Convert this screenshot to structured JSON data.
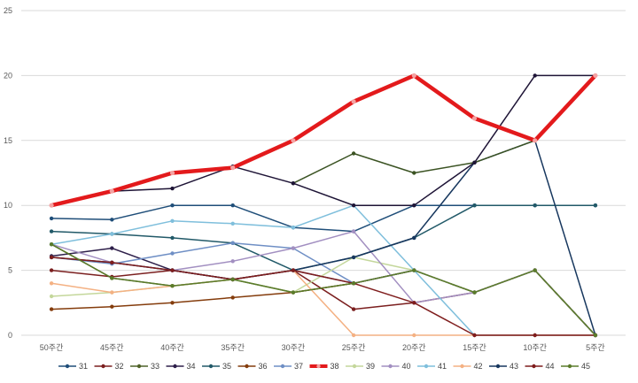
{
  "chart_data": {
    "type": "line",
    "categories": [
      "50주간",
      "45주간",
      "40주간",
      "35주간",
      "30주간",
      "25주간",
      "20주간",
      "15주간",
      "10주간",
      "5주간"
    ],
    "ylim": [
      0,
      25
    ],
    "yticks": [
      0,
      5,
      10,
      15,
      20,
      25
    ],
    "grid": true,
    "legend_position": "bottom",
    "series": [
      {
        "name": "31",
        "color": "#1f4e79",
        "values": [
          9,
          8.9,
          10,
          10,
          8.3,
          8,
          10,
          10,
          10,
          10
        ]
      },
      {
        "name": "32",
        "color": "#7b1f1f",
        "values": [
          5,
          4.5,
          5,
          4.3,
          5,
          2,
          2.5,
          3.3,
          5,
          0
        ]
      },
      {
        "name": "33",
        "color": "#4f6228",
        "values": [
          7,
          4.4,
          3.8,
          4.3,
          3.3,
          4,
          5,
          3.3,
          5,
          0
        ]
      },
      {
        "name": "34",
        "color": "#2e1f4a",
        "values": [
          6.1,
          6.7,
          5,
          4.3,
          5,
          4,
          5,
          3.3,
          5,
          0
        ]
      },
      {
        "name": "35",
        "color": "#215968",
        "values": [
          8,
          7.8,
          7.5,
          7.1,
          5,
          6,
          7.5,
          10,
          10,
          10
        ]
      },
      {
        "name": "36",
        "color": "#843c0c",
        "values": [
          2,
          2.2,
          2.5,
          2.9,
          3.3,
          4,
          5,
          3.3,
          5,
          0
        ]
      },
      {
        "name": "37",
        "color": "#6f8fc5",
        "values": [
          6,
          5.5,
          6.3,
          7.1,
          6.7,
          4,
          5,
          3.3,
          5,
          0
        ]
      },
      {
        "name": "38",
        "color": "#e31a1c",
        "values": [
          10,
          11.1,
          12.5,
          12.9,
          15,
          18,
          20,
          16.7,
          15,
          20
        ]
      },
      {
        "name": "39",
        "color": "#c4d79b",
        "values": [
          3,
          3.3,
          3.8,
          4.3,
          3.3,
          6,
          5,
          3.3,
          5,
          0
        ]
      },
      {
        "name": "40",
        "color": "#a28fc1",
        "values": [
          7,
          5.6,
          5,
          5.7,
          6.7,
          8,
          2.5,
          3.3,
          5,
          0
        ]
      },
      {
        "name": "41",
        "color": "#7fbfdc",
        "values": [
          7,
          7.8,
          8.8,
          8.6,
          8.3,
          10,
          5,
          0,
          0,
          0
        ]
      },
      {
        "name": "42",
        "color": "#f4b183",
        "values": [
          4,
          3.3,
          3.8,
          4.3,
          5,
          0,
          0,
          0,
          0,
          0
        ]
      },
      {
        "name": "43",
        "color": "#17375e",
        "values": [
          6,
          5.6,
          5,
          4.3,
          5,
          6,
          7.5,
          13.3,
          15,
          0
        ]
      },
      {
        "name": "44",
        "color": "#7f1d1d",
        "values": [
          6,
          5.6,
          5,
          4.3,
          5,
          4,
          2.5,
          0,
          0,
          0
        ]
      },
      {
        "name": "45",
        "color": "#5a7b2a",
        "values": [
          7,
          4.4,
          3.8,
          4.3,
          3.3,
          4,
          5,
          3.3,
          5,
          0
        ]
      },
      {
        "name": "",
        "color": "#3b5323",
        "legend": false,
        "values": [
          null,
          null,
          null,
          null,
          11.7,
          14,
          12.5,
          13.3,
          15,
          null
        ]
      },
      {
        "name": "",
        "color": "#1e1436",
        "legend": false,
        "values": [
          10,
          11.1,
          11.3,
          13,
          11.7,
          10,
          10,
          13.3,
          20,
          20
        ]
      }
    ]
  }
}
